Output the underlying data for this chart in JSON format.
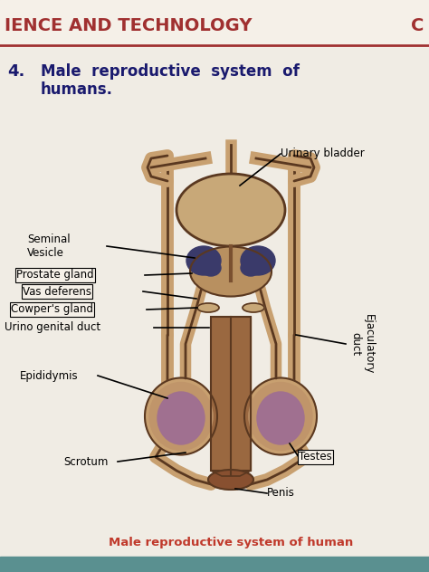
{
  "bg_color": "#e8e4dc",
  "page_bg": "#f0ece4",
  "header_color": "#a03030",
  "header_text": "IENCE AND TECHNOLOGY",
  "header_right": "C",
  "title_number": "4.",
  "title_line1": "Male  reproductive  system  of",
  "title_line2": "humans.",
  "caption": "Male reproductive system of human",
  "caption_color": "#c0392b",
  "body_color": "#c8a070",
  "body_dark": "#7a5030",
  "bladder_color": "#c8a878",
  "prostate_color": "#b89060",
  "testes_color": "#a07090",
  "vesicle_color": "#3a3a6a",
  "penis_color": "#9a6840",
  "glans_color": "#885030",
  "line_color": "#5a3820"
}
